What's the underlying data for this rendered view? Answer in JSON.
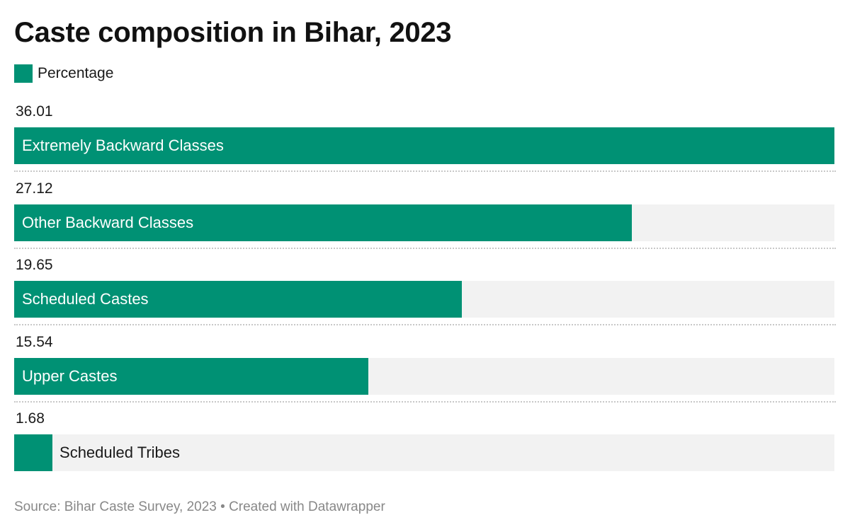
{
  "chart_data": {
    "type": "bar",
    "title": "Caste composition in Bihar, 2023",
    "legend": {
      "label": "Percentage",
      "color": "#009174"
    },
    "categories": [
      "Extremely Backward Classes",
      "Other Backward Classes",
      "Scheduled Castes",
      "Upper Castes",
      "Scheduled Tribes"
    ],
    "values": [
      36.01,
      27.12,
      19.65,
      15.54,
      1.68
    ],
    "value_labels": [
      "36.01",
      "27.12",
      "19.65",
      "15.54",
      "1.68"
    ],
    "xlim": [
      0,
      36.01
    ],
    "bar_color": "#009174",
    "track_color": "#f2f2f2"
  },
  "footer": {
    "source": "Source: Bihar Caste Survey, 2023 • Created with Datawrapper"
  }
}
